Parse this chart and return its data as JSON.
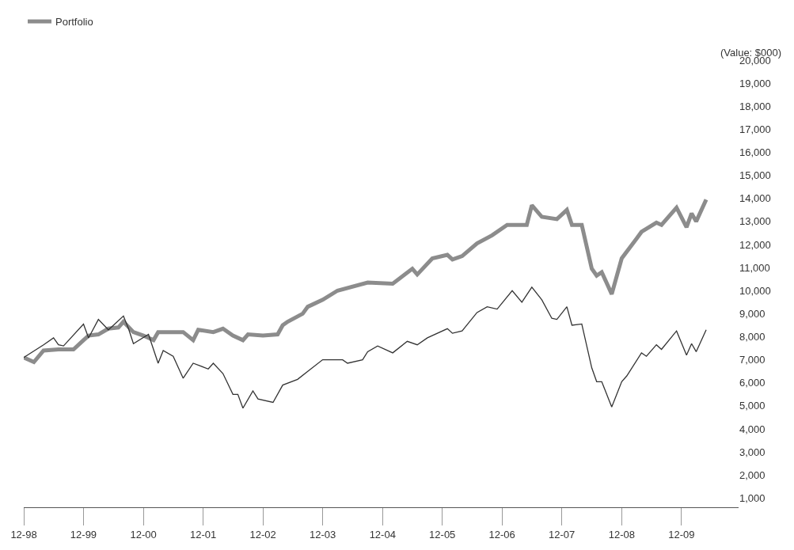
{
  "chart_data": {
    "type": "line",
    "ylabel": "(Value: $000)",
    "legend": "top left",
    "marker": "none",
    "line_style": "solid",
    "xlim": [
      "1998-12",
      "2010-11-15"
    ],
    "xticks": [
      {
        "value": "1998-12",
        "label": "12-98"
      },
      {
        "value": "1999-12",
        "label": "12-99"
      },
      {
        "value": "2000-12",
        "label": "12-00"
      },
      {
        "value": "2001-12",
        "label": "12-01"
      },
      {
        "value": "2002-12",
        "label": "12-02"
      },
      {
        "value": "2003-12",
        "label": "12-03"
      },
      {
        "value": "2004-12",
        "label": "12-04"
      },
      {
        "value": "2005-12",
        "label": "12-05"
      },
      {
        "value": "2006-12",
        "label": "12-06"
      },
      {
        "value": "2007-12",
        "label": "12-07"
      },
      {
        "value": "2008-12",
        "label": "12-08"
      },
      {
        "value": "2009-12",
        "label": "12-09"
      }
    ],
    "ylim": [
      600,
      20000
    ],
    "yticks": [
      {
        "value": 1000,
        "label": "1,000"
      },
      {
        "value": 2000,
        "label": "2,000"
      },
      {
        "value": 3000,
        "label": "3,000"
      },
      {
        "value": 4000,
        "label": "4,000"
      },
      {
        "value": 5000,
        "label": "5,000"
      },
      {
        "value": 6000,
        "label": "6,000"
      },
      {
        "value": 7000,
        "label": "7,000"
      },
      {
        "value": 8000,
        "label": "8,000"
      },
      {
        "value": 9000,
        "label": "9,000"
      },
      {
        "value": 10000,
        "label": "10,000"
      },
      {
        "value": 11000,
        "label": "11,000"
      },
      {
        "value": 12000,
        "label": "12,000"
      },
      {
        "value": 13000,
        "label": "13,000"
      },
      {
        "value": 14000,
        "label": "14,000"
      },
      {
        "value": 15000,
        "label": "15,000"
      },
      {
        "value": 16000,
        "label": "16,000"
      },
      {
        "value": 17000,
        "label": "17,000"
      },
      {
        "value": 18000,
        "label": "18,000"
      },
      {
        "value": 19000,
        "label": "19,000"
      },
      {
        "value": 20000,
        "label": "20,000"
      }
    ],
    "series": [
      {
        "name": "Portfolio",
        "color": "#8c8c8c",
        "x": [
          "1998-12",
          "1999-02",
          "1999-04",
          "1999-07",
          "1999-10",
          "1999-12",
          "2000-01",
          "2000-03",
          "2000-05",
          "2000-07",
          "2000-08",
          "2000-10",
          "2000-12",
          "2001-02",
          "2001-03",
          "2001-05",
          "2001-08",
          "2001-10",
          "2001-11",
          "2002-02",
          "2002-04",
          "2002-06",
          "2002-08",
          "2002-09",
          "2002-12",
          "2003-03",
          "2003-04",
          "2003-05",
          "2003-08",
          "2003-09",
          "2003-12",
          "2004-03",
          "2004-09",
          "2005-02",
          "2005-06",
          "2005-07",
          "2005-10",
          "2006-01",
          "2006-02",
          "2006-04",
          "2006-07",
          "2006-10",
          "2007-01",
          "2007-05",
          "2007-06",
          "2007-08",
          "2007-11",
          "2008-01",
          "2008-02",
          "2008-04",
          "2008-06",
          "2008-07",
          "2008-08",
          "2008-10",
          "2008-12",
          "2009-03",
          "2009-04",
          "2009-07",
          "2009-08",
          "2009-11",
          "2010-01",
          "2010-02",
          "2010-03",
          "2010-05"
        ],
        "values": [
          7100,
          6900,
          7400,
          7450,
          7450,
          7850,
          8050,
          8100,
          8350,
          8400,
          8650,
          8200,
          8050,
          7850,
          8200,
          8200,
          8200,
          7850,
          8300,
          8200,
          8350,
          8050,
          7850,
          8100,
          8050,
          8100,
          8500,
          8650,
          9000,
          9300,
          9600,
          10000,
          10350,
          10300,
          10950,
          10700,
          11400,
          11550,
          11350,
          11500,
          12050,
          12400,
          12850,
          12850,
          13700,
          13200,
          13100,
          13500,
          12850,
          12850,
          10950,
          10650,
          10800,
          9850,
          11400,
          12250,
          12550,
          12950,
          12850,
          13600,
          12750,
          13350,
          13000,
          13950
        ]
      },
      {
        "color": "#333333",
        "x": [
          "1998-12",
          "1999-04",
          "1999-06",
          "1999-07",
          "1999-08",
          "1999-12",
          "2000-01",
          "2000-03",
          "2000-05",
          "2000-06",
          "2000-08",
          "2000-09",
          "2000-10",
          "2001-01",
          "2001-03",
          "2001-04",
          "2001-06",
          "2001-08",
          "2001-10",
          "2002-01",
          "2002-02",
          "2002-04",
          "2002-06",
          "2002-07",
          "2002-08",
          "2002-10",
          "2002-11",
          "2003-02",
          "2003-04",
          "2003-07",
          "2003-09",
          "2003-12",
          "2004-04",
          "2004-05",
          "2004-08",
          "2004-09",
          "2004-11",
          "2005-02",
          "2005-05",
          "2005-07",
          "2005-09",
          "2006-01",
          "2006-02",
          "2006-04",
          "2006-07",
          "2006-09",
          "2006-11",
          "2007-02",
          "2007-04",
          "2007-06",
          "2007-08",
          "2007-10",
          "2007-11",
          "2008-01",
          "2008-02",
          "2008-04",
          "2008-06",
          "2008-07",
          "2008-08",
          "2008-10",
          "2008-12",
          "2009-01",
          "2009-04",
          "2009-05",
          "2009-07",
          "2009-08",
          "2009-11",
          "2010-01",
          "2010-02",
          "2010-03",
          "2010-05"
        ],
        "values": [
          7100,
          7650,
          7950,
          7650,
          7600,
          8550,
          7950,
          8750,
          8300,
          8500,
          8900,
          8350,
          7700,
          8100,
          6850,
          7400,
          7150,
          6200,
          6850,
          6600,
          6850,
          6400,
          5500,
          5500,
          4900,
          5650,
          5300,
          5150,
          5900,
          6150,
          6500,
          7000,
          7000,
          6850,
          7000,
          7350,
          7600,
          7300,
          7800,
          7650,
          7950,
          8350,
          8150,
          8250,
          9050,
          9300,
          9200,
          10000,
          9500,
          10150,
          9600,
          8800,
          8750,
          9300,
          8500,
          8550,
          6650,
          6050,
          6050,
          4950,
          6050,
          6300,
          7300,
          7150,
          7650,
          7450,
          8250,
          7200,
          7700,
          7350,
          8300
        ]
      }
    ]
  }
}
